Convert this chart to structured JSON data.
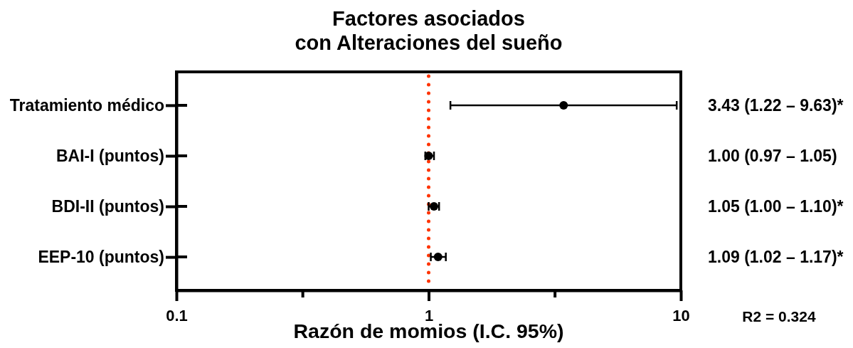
{
  "chart_data": {
    "type": "scatter",
    "title": "Factores asociados\ncon Alteraciones del sueño",
    "xlabel": "Razón de momios (I.C. 95%)",
    "categories": [
      "Tratamiento médico",
      "BAI-I (puntos)",
      "BDI-II (puntos)",
      "EEP-10 (puntos)"
    ],
    "values": [
      3.43,
      1.0,
      1.05,
      1.09
    ],
    "errors": [
      [
        1.22,
        9.63
      ],
      [
        0.97,
        1.05
      ],
      [
        1.0,
        1.1
      ],
      [
        1.02,
        1.17
      ]
    ],
    "value_labels": [
      "3.43 (1.22 – 9.63)*",
      "1.00 (0.97 – 1.05)",
      "1.05 (1.00 – 1.10)*",
      "1.09 (1.02 – 1.17)*"
    ],
    "color": "#000000",
    "marker": "circle",
    "orientation": "horizontal",
    "log": "x",
    "xlim": [
      0.1,
      10
    ],
    "xticks": [
      0.1,
      {
        "value": 0.316,
        "label": null
      },
      1,
      {
        "value": 3.16,
        "label": null
      },
      10
    ],
    "ref_lines": [
      {
        "axis": "x",
        "value": 1,
        "color": "#ff3300",
        "line_style": "dotted"
      }
    ],
    "annotations": [
      "R2 = 0.324"
    ]
  }
}
